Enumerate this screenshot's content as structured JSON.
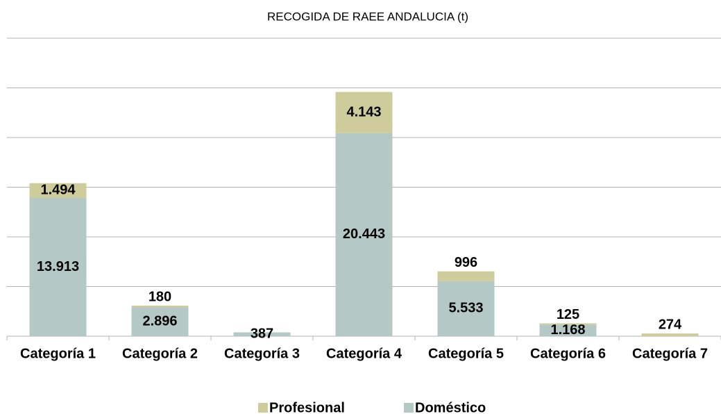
{
  "chart_data": {
    "type": "stacked_bar",
    "title": "RECOGIDA DE RAEE ANDALUCIA (t)",
    "categories": [
      "Categoría 1",
      "Categoría 2",
      "Categoría 3",
      "Categoría 4",
      "Categoría 5",
      "Categoría 6",
      "Categoría 7"
    ],
    "series": [
      {
        "name": "Doméstico",
        "color": "#b4c9c5",
        "values": [
          13913,
          2896,
          387,
          20443,
          5533,
          1168,
          null
        ],
        "value_labels": [
          "13.913",
          "2.896",
          "387",
          "20.443",
          "5.533",
          "1.168",
          null
        ]
      },
      {
        "name": "Profesional",
        "color": "#cfcc9c",
        "values": [
          1494,
          180,
          null,
          4143,
          996,
          125,
          274
        ],
        "value_labels": [
          "1.494",
          "180",
          null,
          "4.143",
          "996",
          "125",
          "274"
        ]
      }
    ],
    "ylim": [
      0,
      30000
    ],
    "yticks": [
      0,
      5000,
      10000,
      15000,
      20000,
      25000,
      30000
    ],
    "grid": true
  }
}
